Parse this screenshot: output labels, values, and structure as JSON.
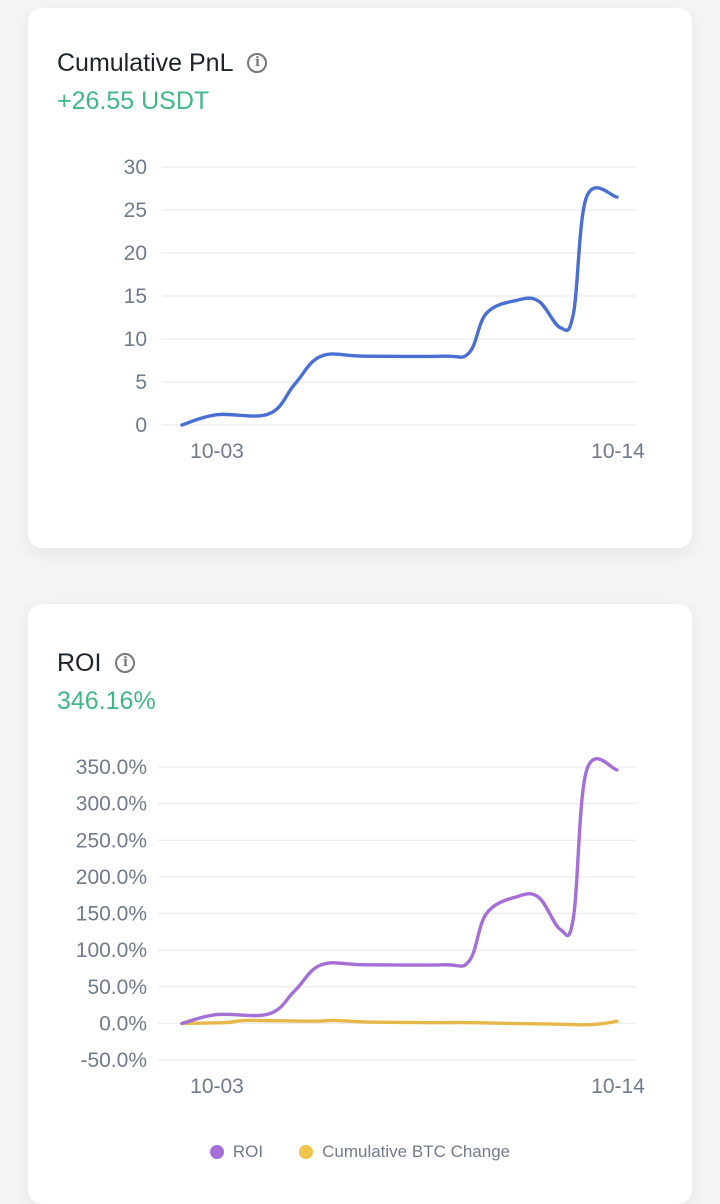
{
  "pnl_card": {
    "title": "Cumulative PnL",
    "value": "+26.55 USDT"
  },
  "roi_card": {
    "title": "ROI",
    "value": "346.16%"
  },
  "legend": [
    {
      "label": "ROI",
      "color": "#a56fd8"
    },
    {
      "label": "Cumulative BTC Change",
      "color": "#f0c54a"
    }
  ],
  "chart_data": [
    {
      "type": "line",
      "title": "Cumulative PnL",
      "xlabel": "",
      "ylabel": "",
      "x_ticks": [
        "10-03",
        "10-14"
      ],
      "y_ticks": [
        "30",
        "25",
        "20",
        "15",
        "10",
        "5",
        "0"
      ],
      "ylim": [
        0,
        30
      ],
      "grid": true,
      "series": [
        {
          "color": "#4a6fd3",
          "points": [
            [
              0,
              0
            ],
            [
              0.08,
              1.2
            ],
            [
              0.2,
              1.3
            ],
            [
              0.26,
              4.8
            ],
            [
              0.32,
              8
            ],
            [
              0.42,
              8
            ],
            [
              0.6,
              8
            ],
            [
              0.66,
              8.4
            ],
            [
              0.7,
              13
            ],
            [
              0.77,
              14.5
            ],
            [
              0.82,
              14.4
            ],
            [
              0.87,
              11.3
            ],
            [
              0.9,
              13
            ],
            [
              0.93,
              26.5
            ],
            [
              1.0,
              26.5
            ]
          ]
        }
      ]
    },
    {
      "type": "line",
      "title": "ROI",
      "xlabel": "",
      "ylabel": "",
      "x_ticks": [
        "10-03",
        "10-14"
      ],
      "y_ticks": [
        "350.0%",
        "300.0%",
        "250.0%",
        "200.0%",
        "150.0%",
        "100.0%",
        "50.0%",
        "0.0%",
        "-50.0%"
      ],
      "ylim": [
        -50,
        350
      ],
      "grid": true,
      "legend": "bottom-center",
      "series": [
        {
          "name": "ROI",
          "color": "#a56fd8",
          "points": [
            [
              0,
              0
            ],
            [
              0.08,
              12
            ],
            [
              0.2,
              13
            ],
            [
              0.26,
              45
            ],
            [
              0.32,
              80
            ],
            [
              0.42,
              80
            ],
            [
              0.6,
              80
            ],
            [
              0.66,
              85
            ],
            [
              0.7,
              150
            ],
            [
              0.77,
              173
            ],
            [
              0.82,
              172
            ],
            [
              0.87,
              128
            ],
            [
              0.9,
              145
            ],
            [
              0.93,
              345
            ],
            [
              1.0,
              346
            ]
          ]
        },
        {
          "name": "Cumulative BTC Change",
          "color": "#e6b84a",
          "points": [
            [
              0,
              0
            ],
            [
              0.1,
              1
            ],
            [
              0.15,
              4
            ],
            [
              0.3,
              3
            ],
            [
              0.35,
              4
            ],
            [
              0.42,
              2
            ],
            [
              0.55,
              1
            ],
            [
              0.65,
              1
            ],
            [
              0.75,
              0
            ],
            [
              0.85,
              -1
            ],
            [
              0.93,
              -2
            ],
            [
              0.97,
              0
            ],
            [
              1.0,
              3
            ]
          ]
        }
      ]
    }
  ]
}
